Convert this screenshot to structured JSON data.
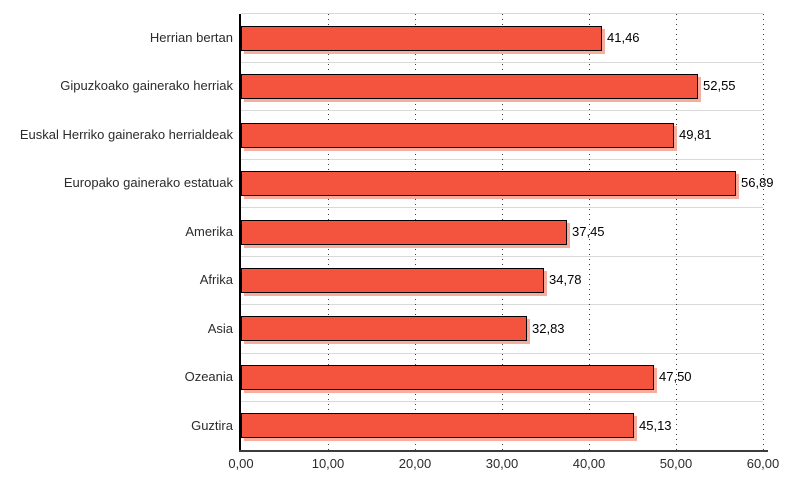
{
  "chart_data": {
    "type": "bar",
    "orientation": "horizontal",
    "title": "",
    "xlabel": "",
    "ylabel": "",
    "legend": "none",
    "grid": "vertical-dotted",
    "xlim": [
      0,
      60
    ],
    "categories": [
      "Herrian bertan",
      "Gipuzkoako gainerako herriak",
      "Euskal Herriko gainerako herrialdeak",
      "Europako gainerako estatuak",
      "Amerika",
      "Afrika",
      "Asia",
      "Ozeania",
      "Guztira"
    ],
    "values": [
      41.46,
      52.55,
      49.81,
      56.89,
      37.45,
      34.78,
      32.83,
      47.5,
      45.13
    ],
    "value_labels": [
      "41,46",
      "52,55",
      "49,81",
      "56,89",
      "37,45",
      "34,78",
      "32,83",
      "47,50",
      "45,13"
    ],
    "x_tick_values": [
      0,
      10,
      20,
      30,
      40,
      50,
      60
    ],
    "x_tick_labels": [
      "0,00",
      "10,00",
      "20,00",
      "30,00",
      "40,00",
      "50,00",
      "60,00"
    ],
    "colors": {
      "bar_fill": "#F4533E",
      "bar_border": "#000000",
      "bar_shadow": "#F7AD9E",
      "gridline_dots": "#3A3A3A",
      "row_separator": "#D9D9D9",
      "y_axis_line": "#000000",
      "x_axis_line": "#3C3C3C",
      "category_text": "#2B2B2B",
      "value_text": "#000000",
      "tick_text": "#2B2B2B",
      "background": "#FFFFFF"
    }
  }
}
